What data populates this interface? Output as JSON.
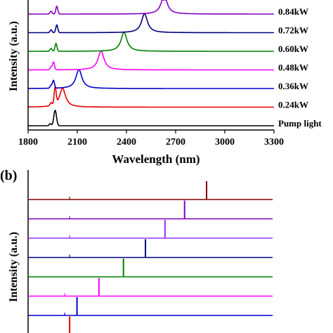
{
  "chart_data": [
    {
      "panel_label": "",
      "type": "line",
      "xlabel": "Wavelength (nm)",
      "ylabel": "Intensity (a.u.)",
      "xlim": [
        1800,
        3300
      ],
      "xticks": [
        "1800",
        "2100",
        "2400",
        "2700",
        "3000",
        "3300"
      ],
      "grid": false,
      "series": [
        {
          "name": "Pump light",
          "color": "#000000",
          "pump_nm": 1965,
          "peak_nm": null
        },
        {
          "name": "0.24kW",
          "color": "#e60000",
          "pump_nm": 1965,
          "peak_nm": 2010
        },
        {
          "name": "0.36kW",
          "color": "#0000cc",
          "pump_nm": 1955,
          "peak_nm": 2110
        },
        {
          "name": "0.48kW",
          "color": "#ff00ff",
          "pump_nm": 1955,
          "peak_nm": 2245
        },
        {
          "name": "0.60kW",
          "color": "#008000",
          "pump_nm": 1970,
          "peak_nm": 2385
        },
        {
          "name": "0.72kW",
          "color": "#000080",
          "pump_nm": 1975,
          "peak_nm": 2510
        },
        {
          "name": "0.84kW",
          "color": "#8000c0",
          "pump_nm": 1975,
          "peak_nm": 2630
        }
      ]
    },
    {
      "panel_label": "(b)",
      "type": "line",
      "xlabel": "",
      "ylabel": "Intensity (a.u.)",
      "grid": false,
      "series": [
        {
          "name": "",
          "color": "#800000",
          "small_peak": 0.17,
          "main_peak": 0.73
        },
        {
          "name": "",
          "color": "#8000c0",
          "small_peak": 0.17,
          "main_peak": 0.64
        },
        {
          "name": "",
          "color": "#9933ff",
          "small_peak": 0.17,
          "main_peak": 0.56
        },
        {
          "name": "",
          "color": "#000080",
          "small_peak": 0.17,
          "main_peak": 0.48
        },
        {
          "name": "",
          "color": "#008000",
          "small_peak": null,
          "main_peak": 0.39
        },
        {
          "name": "",
          "color": "#ff00ff",
          "small_peak": 0.15,
          "main_peak": 0.29
        },
        {
          "name": "",
          "color": "#0000cc",
          "small_peak": 0.15,
          "main_peak": 0.2
        },
        {
          "name": "",
          "color": "#e60000",
          "small_peak": null,
          "main_peak": 0.17
        }
      ]
    }
  ]
}
